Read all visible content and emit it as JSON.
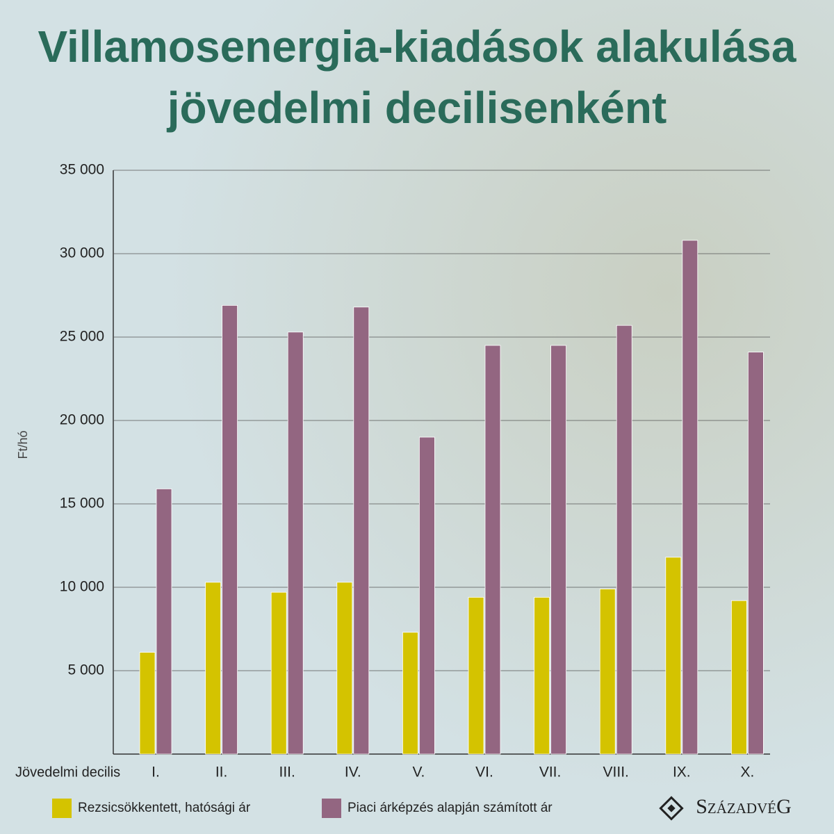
{
  "chart_data": {
    "type": "bar",
    "title": [
      "Villamosenergia-kiadások alakulása",
      "jövedelmi decilisenként"
    ],
    "y_label": "Ft/hó",
    "x_label": "Jövedelmi decilis",
    "categories": [
      "I.",
      "II.",
      "III.",
      "IV.",
      "V.",
      "VI.",
      "VII.",
      "VIII.",
      "IX.",
      "X."
    ],
    "series": [
      {
        "name": "Rezsicsökkentett, hatósági ár",
        "color": "#d4c300",
        "values": [
          6100,
          10300,
          9700,
          10300,
          7300,
          9400,
          9400,
          9900,
          11800,
          9200
        ]
      },
      {
        "name": "Piaci árképzés alapján számított ár",
        "color": "#936681",
        "values": [
          15900,
          26900,
          25300,
          26800,
          19000,
          24500,
          24500,
          25700,
          30800,
          24100
        ]
      }
    ],
    "ylim": [
      0,
      35000
    ],
    "yticks": [
      {
        "value": 5000,
        "label": "5 000"
      },
      {
        "value": 10000,
        "label": "10 000"
      },
      {
        "value": 15000,
        "label": "15 000"
      },
      {
        "value": 20000,
        "label": "20 000"
      },
      {
        "value": 25000,
        "label": "25 000"
      },
      {
        "value": 30000,
        "label": "30 000"
      },
      {
        "value": 35000,
        "label": "35 000"
      }
    ],
    "grid": true,
    "logo": "SzázadvéG"
  }
}
